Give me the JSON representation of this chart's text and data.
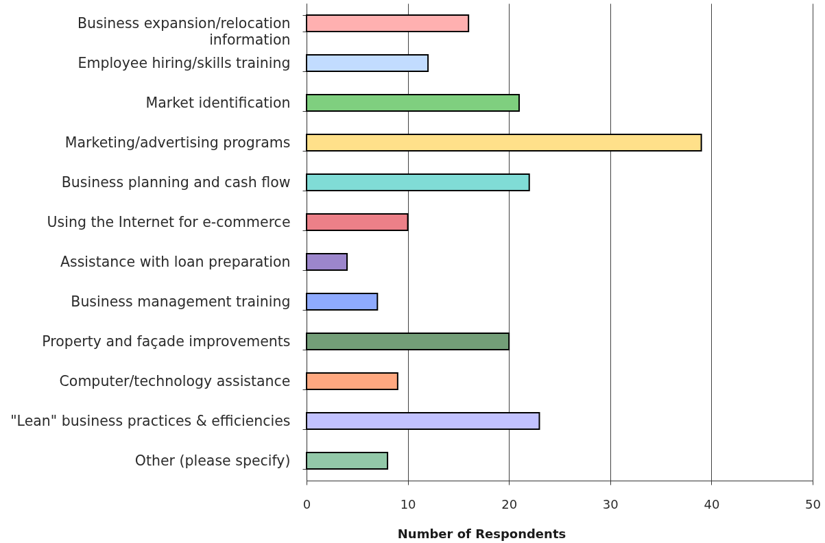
{
  "chart_data": {
    "type": "bar",
    "orientation": "horizontal",
    "categories": [
      "Business expansion/relocation information",
      "Employee hiring/skills training",
      "Market identification",
      "Marketing/advertising programs",
      "Business planning and cash flow",
      "Using the Internet for e-commerce",
      "Assistance with loan preparation",
      "Business management training",
      "Property and façade improvements",
      "Computer/technology  assistance",
      "\"Lean\" business practices & efficiencies",
      "Other (please specify)"
    ],
    "values": [
      16,
      12,
      21,
      39,
      22,
      10,
      4,
      7,
      20,
      9,
      23,
      8
    ],
    "colors": [
      "#ffb0b0",
      "#c2dcff",
      "#7fcf7f",
      "#ffe08a",
      "#80dcd6",
      "#ec8088",
      "#9c86cc",
      "#8eaaff",
      "#739e78",
      "#ffa880",
      "#c2c2ff",
      "#92c8a8"
    ],
    "xlabel": "Number of Respondents",
    "xlim": [
      0,
      50
    ],
    "xticks": [
      0,
      10,
      20,
      30,
      40,
      50
    ],
    "grid": "x"
  }
}
